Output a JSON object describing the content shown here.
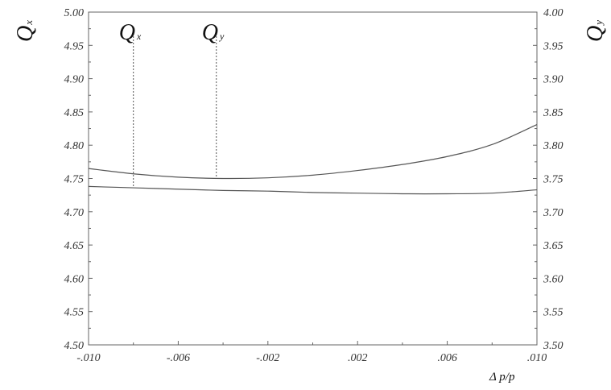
{
  "chart_data": {
    "type": "line",
    "xlabel": "Δ p/p",
    "ylabel_left": "Qx",
    "ylabel_right": "Qy",
    "xlim": [
      -0.01,
      0.01
    ],
    "ylim_left": [
      4.5,
      5.0
    ],
    "ylim_right": [
      3.5,
      4.0
    ],
    "x_ticks": [
      -0.01,
      -0.006,
      -0.002,
      0.002,
      0.006,
      0.01
    ],
    "x_tick_labels": [
      "-.010",
      "-.006",
      "-.002",
      ".002",
      ".006",
      ".010"
    ],
    "y_ticks_left": [
      4.5,
      4.55,
      4.6,
      4.65,
      4.7,
      4.75,
      4.8,
      4.85,
      4.9,
      4.95,
      5.0
    ],
    "y_tick_labels_left": [
      "4.50",
      "4.55",
      "4.60",
      "4.65",
      "4.70",
      "4.75",
      "4.80",
      "4.85",
      "4.90",
      "4.95",
      "5.00"
    ],
    "y_ticks_right": [
      3.5,
      3.55,
      3.6,
      3.65,
      3.7,
      3.75,
      3.8,
      3.85,
      3.9,
      3.95,
      4.0
    ],
    "y_tick_labels_right": [
      "3.50",
      "3.55",
      "3.60",
      "3.65",
      "3.70",
      "3.75",
      "3.80",
      "3.85",
      "3.90",
      "3.95",
      "4.00"
    ],
    "grid": false,
    "series": [
      {
        "name": "Qx",
        "axis": "left",
        "x": [
          -0.01,
          -0.008,
          -0.006,
          -0.004,
          -0.002,
          0.0,
          0.002,
          0.004,
          0.006,
          0.008,
          0.01
        ],
        "values": [
          4.738,
          4.736,
          4.734,
          4.732,
          4.731,
          4.729,
          4.728,
          4.727,
          4.727,
          4.728,
          4.733
        ]
      },
      {
        "name": "Qy",
        "axis": "right",
        "x": [
          -0.01,
          -0.008,
          -0.006,
          -0.004,
          -0.002,
          0.0,
          0.002,
          0.004,
          0.006,
          0.008,
          0.01
        ],
        "values": [
          3.765,
          3.757,
          3.752,
          3.75,
          3.751,
          3.755,
          3.762,
          3.771,
          3.783,
          3.801,
          3.831
        ]
      }
    ],
    "annotations": [
      {
        "text_main": "Q",
        "text_sub": "x",
        "x": -0.008,
        "y_end": 4.738,
        "axis": "left"
      },
      {
        "text_main": "Q",
        "text_sub": "y",
        "x": -0.0043,
        "y_end": 3.75,
        "axis": "right"
      }
    ],
    "colors": {
      "line": "#555555",
      "axes": "#666666",
      "text": "#222222"
    }
  }
}
